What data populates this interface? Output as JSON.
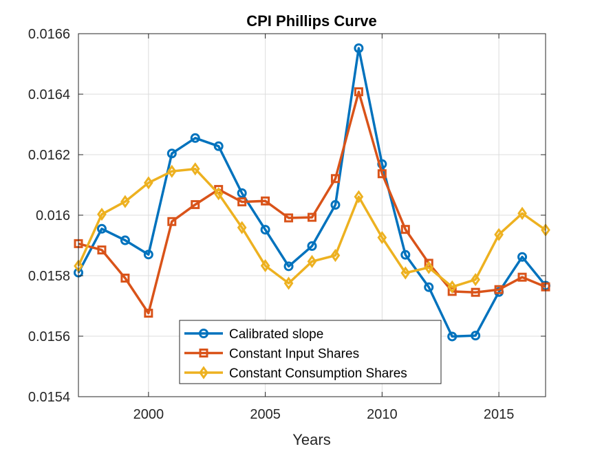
{
  "chart_data": {
    "type": "line",
    "title": "CPI Phillips Curve",
    "xlabel": "Years",
    "ylabel": "",
    "xlim": [
      1997,
      2017
    ],
    "ylim": [
      0.0154,
      0.0166
    ],
    "xticks": [
      "2000",
      "2005",
      "2010",
      "2015"
    ],
    "yticks": [
      "0.0154",
      "0.0156",
      "0.0158",
      "0.016",
      "0.0162",
      "0.0164",
      "0.0166"
    ],
    "grid": true,
    "legend_position": "bottom-center",
    "x": [
      1997,
      1998,
      1999,
      2000,
      2001,
      2002,
      2003,
      2004,
      2005,
      2006,
      2007,
      2008,
      2009,
      2010,
      2011,
      2012,
      2013,
      2014,
      2015,
      2016,
      2017
    ],
    "series": [
      {
        "name": "Calibrated slope",
        "color": "#0072BD",
        "marker": "circle",
        "values": [
          0.01581,
          0.015955,
          0.015917,
          0.01587,
          0.016204,
          0.016255,
          0.016228,
          0.016073,
          0.015952,
          0.015831,
          0.015898,
          0.016034,
          0.016552,
          0.016169,
          0.015869,
          0.015762,
          0.015599,
          0.015602,
          0.015746,
          0.015862,
          0.015767
        ]
      },
      {
        "name": "Constant Input Shares",
        "color": "#D95319",
        "marker": "square",
        "values": [
          0.015906,
          0.015885,
          0.015792,
          0.015676,
          0.015979,
          0.016035,
          0.016085,
          0.016044,
          0.016047,
          0.015991,
          0.015993,
          0.016121,
          0.016408,
          0.016137,
          0.015953,
          0.015841,
          0.015748,
          0.015745,
          0.015754,
          0.015795,
          0.015763
        ]
      },
      {
        "name": "Constant Consumption Shares",
        "color": "#EDB120",
        "marker": "diamond",
        "values": [
          0.015832,
          0.016003,
          0.016045,
          0.016107,
          0.016145,
          0.016153,
          0.016071,
          0.015959,
          0.015833,
          0.015775,
          0.015847,
          0.015867,
          0.016061,
          0.015926,
          0.015809,
          0.015827,
          0.015763,
          0.015787,
          0.015936,
          0.016006,
          0.015951
        ]
      }
    ]
  }
}
